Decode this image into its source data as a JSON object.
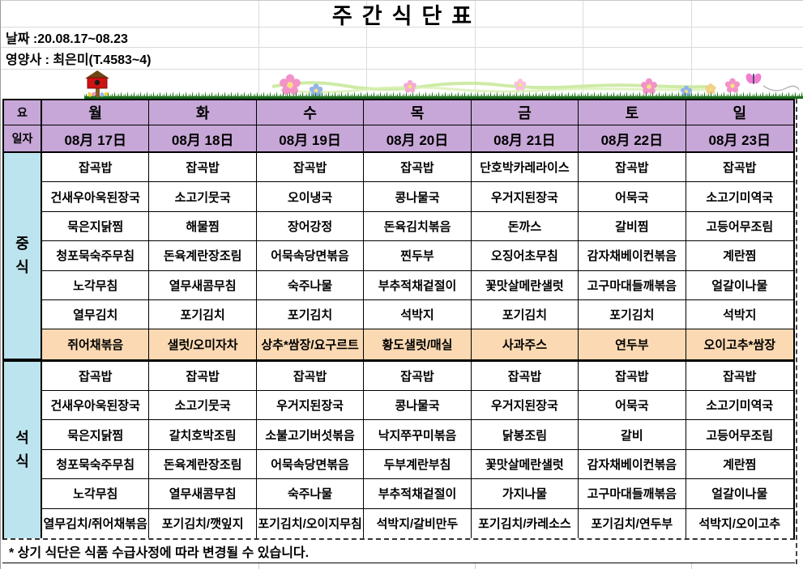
{
  "title": "주간식단표",
  "info": {
    "date": "날짜 :20.08.17~08.23",
    "dietitian": "영양사 : 최은미(T.4583~4)"
  },
  "decor": {
    "icons": [
      "birdhouse-icon",
      "grass-border",
      "flower-garland",
      "butterfly-icon"
    ]
  },
  "colors": {
    "header_purple": "#c7a7d7",
    "label_blue": "#bce4ee",
    "highlight_orange": "#fbd9b3",
    "grid_gray": "#dcdcdc"
  },
  "table": {
    "corner": {
      "day": "요",
      "date": "일자"
    },
    "days": [
      "월",
      "화",
      "수",
      "목",
      "금",
      "토",
      "일"
    ],
    "dates": [
      "08月 17日",
      "08月 18日",
      "08月 19日",
      "08月 20日",
      "08月 21日",
      "08月 22日",
      "08月 23日"
    ],
    "sections": [
      {
        "label": "중식",
        "highlight_last_row": true,
        "rows": [
          [
            "잡곡밥",
            "잡곡밥",
            "잡곡밥",
            "잡곡밥",
            "단호박카레라이스",
            "잡곡밥",
            "잡곡밥"
          ],
          [
            "건새우아욱된장국",
            "소고기뭇국",
            "오이냉국",
            "콩나물국",
            "우거지된장국",
            "어묵국",
            "소고기미역국"
          ],
          [
            "묵은지닭찜",
            "해물찜",
            "장어강정",
            "돈육김치볶음",
            "돈까스",
            "갈비찜",
            "고등어무조림"
          ],
          [
            "청포묵숙주무침",
            "돈육계란장조림",
            "어묵속당면볶음",
            "찐두부",
            "오징어초무침",
            "감자채베이컨볶음",
            "계란찜"
          ],
          [
            "노각무침",
            "열무새콤무침",
            "숙주나물",
            "부추적채겉절이",
            "꽃맛살메란샐럿",
            "고구마대들깨볶음",
            "얼갈이나물"
          ],
          [
            "열무김치",
            "포기김치",
            "포기김치",
            "석박지",
            "포기김치",
            "포기김치",
            "석박지"
          ],
          [
            "쥐어채볶음",
            "샐럿/오미자차",
            "상추*쌈장/요구르트",
            "황도샐럿/매실",
            "사과주스",
            "연두부",
            "오이고추*쌈장"
          ]
        ]
      },
      {
        "label": "석식",
        "highlight_last_row": false,
        "rows": [
          [
            "잡곡밥",
            "잡곡밥",
            "잡곡밥",
            "잡곡밥",
            "잡곡밥",
            "잡곡밥",
            "잡곡밥"
          ],
          [
            "건새우아욱된장국",
            "소고기뭇국",
            "우거지된장국",
            "콩나물국",
            "우거지된장국",
            "어묵국",
            "소고기미역국"
          ],
          [
            "묵은지닭찜",
            "갈치호박조림",
            "소불고기버섯볶음",
            "낙지쭈꾸미볶음",
            "닭봉조림",
            "갈비",
            "고등어무조림"
          ],
          [
            "청포묵숙주무침",
            "돈육계란장조림",
            "어묵속당면볶음",
            "두부계란부침",
            "꽃맛살메란샐럿",
            "감자채베이컨볶음",
            "계란찜"
          ],
          [
            "노각무침",
            "열무새콤무침",
            "숙주나물",
            "부추적채겉절이",
            "가지나물",
            "고구마대들깨볶음",
            "얼갈이나물"
          ],
          [
            "열무김치/쥐어채볶음",
            "포기김치/깻잎지",
            "포기김치/오이지무침",
            "석박지/갈비만두",
            "포기김치/카레소스",
            "포기김치/연두부",
            "석박지/오이고추"
          ]
        ]
      }
    ]
  },
  "footer": {
    "note": "* 상기 식단은 식품 수급사정에 따라 변경될 수 있습니다."
  }
}
